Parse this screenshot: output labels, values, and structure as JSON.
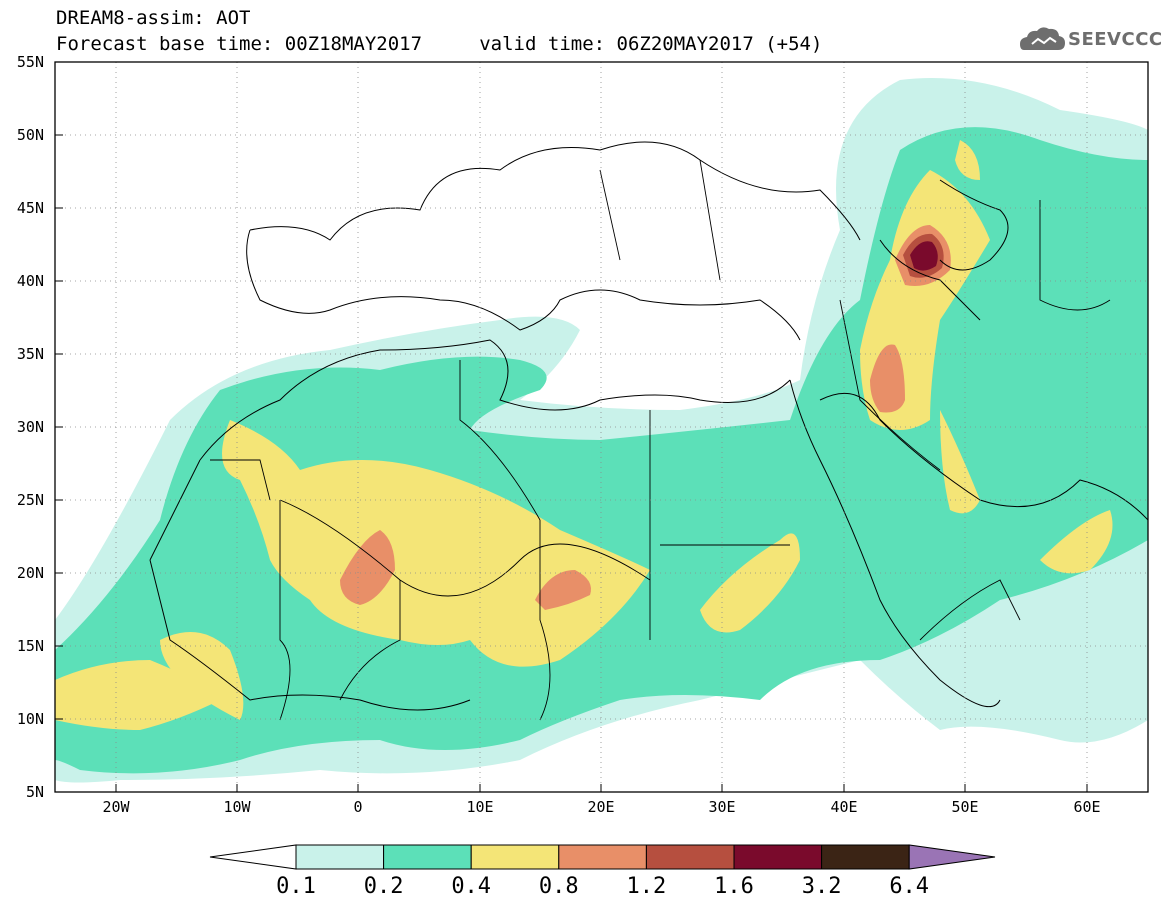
{
  "header": {
    "title_line1": "DREAM8-assim: AOT",
    "title_line2": "Forecast base time: 00Z18MAY2017     valid time: 06Z20MAY2017 (+54)",
    "logo_text": "SEEVCCC"
  },
  "map": {
    "projection": "lat-lon",
    "lon_range": [
      -25,
      65
    ],
    "lat_range": [
      5,
      55
    ],
    "lat_labels": [
      "55N",
      "50N",
      "45N",
      "40N",
      "35N",
      "30N",
      "25N",
      "20N",
      "15N",
      "10N",
      "5N"
    ],
    "lon_labels": [
      "20W",
      "10W",
      "0",
      "10E",
      "20E",
      "30E",
      "40E",
      "50E",
      "60E"
    ],
    "grid": "dotted"
  },
  "legend": {
    "levels": [
      "0.1",
      "0.2",
      "0.4",
      "0.8",
      "1.2",
      "1.6",
      "3.2",
      "6.4"
    ],
    "colors": [
      "#c9f2ea",
      "#5ce0b8",
      "#f4e577",
      "#e88f68",
      "#b64f3f",
      "#7a0a2c",
      "#3b2415",
      "#9a74b5"
    ],
    "lower_arrow_color": "#ffffff",
    "upper_arrow_color": "#9a74b5"
  }
}
